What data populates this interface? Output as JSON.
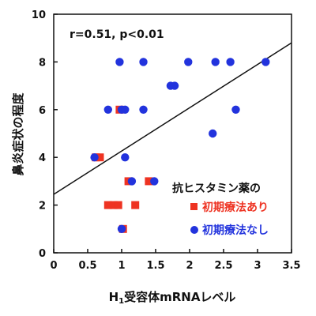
{
  "chart_data": {
    "type": "scatter",
    "xlabel_main": "H",
    "xlabel_sub": "1",
    "xlabel_rest": "受容体mRNAレベル",
    "ylabel": "鼻炎症状の程度",
    "xlim": [
      0,
      3.5
    ],
    "ylim": [
      0,
      10
    ],
    "x_ticks": [
      "0",
      "0.5",
      "1",
      "1.5",
      "2",
      "2.5",
      "3",
      "3.5"
    ],
    "y_ticks": [
      "0",
      "2",
      "4",
      "6",
      "8",
      "10"
    ],
    "grid": false,
    "annotation": "r=0.51, p<0.01",
    "legend": {
      "placement": "bottom-right",
      "title": "抗ヒスタミン薬の"
    },
    "regression": {
      "x": [
        0,
        3.5
      ],
      "y": [
        2.45,
        8.8
      ]
    },
    "series": [
      {
        "name": "初期療法あり",
        "marker": "square",
        "color": "#ee3322",
        "x": [
          0.97,
          0.62,
          0.68,
          0.8,
          0.88,
          0.95,
          1.2,
          1.1,
          1.4,
          1.02
        ],
        "y": [
          6.0,
          4.0,
          4.0,
          2.0,
          2.0,
          2.0,
          2.0,
          3.0,
          3.0,
          1.0
        ]
      },
      {
        "name": "初期療法なし",
        "marker": "circle",
        "color": "#2233dd",
        "x": [
          0.97,
          1.32,
          1.98,
          2.38,
          2.6,
          3.12,
          1.72,
          1.78,
          0.8,
          1.0,
          1.05,
          1.32,
          2.68,
          2.34,
          0.6,
          1.05,
          1.15,
          1.48,
          1.0
        ],
        "y": [
          8.0,
          8.0,
          8.0,
          8.0,
          8.0,
          8.0,
          7.0,
          7.0,
          6.0,
          6.0,
          6.0,
          6.0,
          6.0,
          5.0,
          4.0,
          4.0,
          3.0,
          3.0,
          1.0
        ]
      }
    ]
  }
}
